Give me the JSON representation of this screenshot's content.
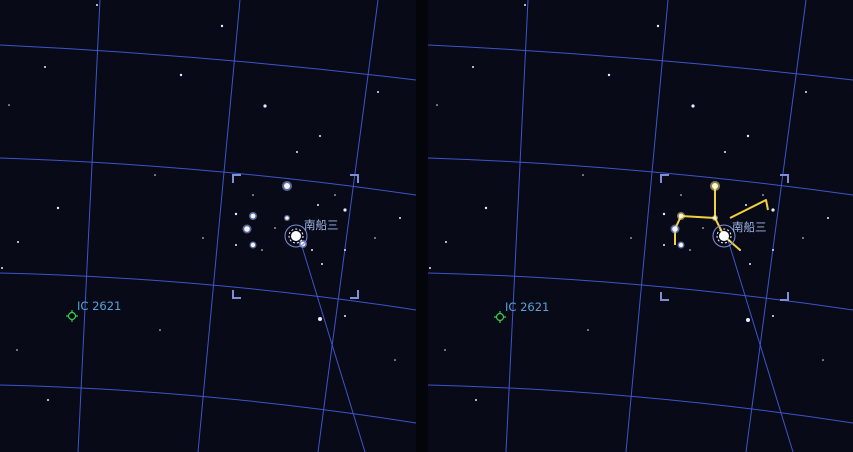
{
  "panels": [
    {
      "id": "left",
      "deep_sky_label": "IC 2621",
      "star_label": "南船三",
      "constellation_lines": false
    },
    {
      "id": "right",
      "deep_sky_label": "IC 2621",
      "star_label": "南船三",
      "constellation_lines": true
    }
  ],
  "colors": {
    "sky_background": "#080a18",
    "grid_line": "#3e55c8",
    "reticle": "#7f8fd6",
    "star": "#e8eeff",
    "bright_star_glow": "#9db6ff",
    "constellation_line": "#f2d23a",
    "deep_sky_marker": "#3bd14a",
    "label": "#5aa0d8"
  },
  "icons": {
    "deep_sky": "dso-crosshair-icon",
    "star_marker": "star-target-icon"
  }
}
